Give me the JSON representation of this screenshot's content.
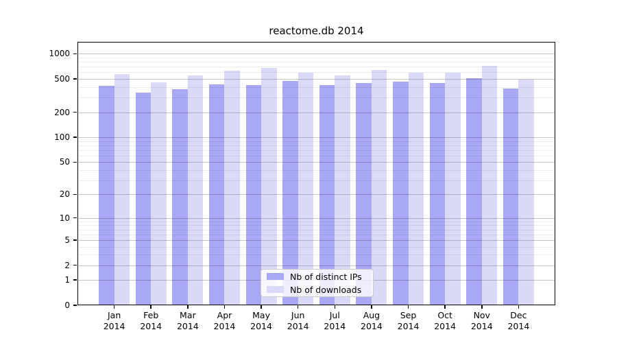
{
  "title": "reactome.db 2014",
  "legend": {
    "items": [
      {
        "label": "Nb of distinct IPs",
        "color": "#a8a8f7"
      },
      {
        "label": "Nb of downloads",
        "color": "#dadaf8"
      }
    ]
  },
  "y_axis": {
    "tick_labels": [
      "1000",
      "500",
      "200",
      "100",
      "50",
      "20",
      "10",
      "5",
      "2",
      "1",
      "0"
    ],
    "tick_values": [
      1000,
      500,
      200,
      100,
      50,
      20,
      10,
      5,
      2,
      1,
      0
    ]
  },
  "x_axis": {
    "year": "2014",
    "months": [
      "Jan",
      "Feb",
      "Mar",
      "Apr",
      "May",
      "Jun",
      "Jul",
      "Aug",
      "Sep",
      "Oct",
      "Nov",
      "Dec"
    ]
  },
  "chart_data": {
    "type": "bar",
    "title": "reactome.db 2014",
    "categories": [
      "Jan 2014",
      "Feb 2014",
      "Mar 2014",
      "Apr 2014",
      "May 2014",
      "Jun 2014",
      "Jul 2014",
      "Aug 2014",
      "Sep 2014",
      "Oct 2014",
      "Nov 2014",
      "Dec 2014"
    ],
    "series": [
      {
        "name": "Nb of distinct IPs",
        "color": "#a8a8f7",
        "values": [
          415,
          343,
          376,
          427,
          424,
          469,
          421,
          446,
          463,
          446,
          506,
          388
        ]
      },
      {
        "name": "Nb of downloads",
        "color": "#dadaf8",
        "values": [
          570,
          454,
          552,
          623,
          679,
          595,
          552,
          635,
          588,
          595,
          711,
          493
        ]
      }
    ],
    "ylabel": "",
    "xlabel": "",
    "yscale": "log10(1+v)",
    "ylim_values": [
      0,
      1400
    ],
    "y_major_ticks": [
      0,
      1,
      2,
      5,
      10,
      20,
      50,
      100,
      200,
      500,
      1000
    ],
    "grid": "horizontal major+minor (log decades), drawn over bars",
    "legend_position": "lower center inside plot",
    "bar_layout": "paired side-by-side, no gap within pair"
  }
}
